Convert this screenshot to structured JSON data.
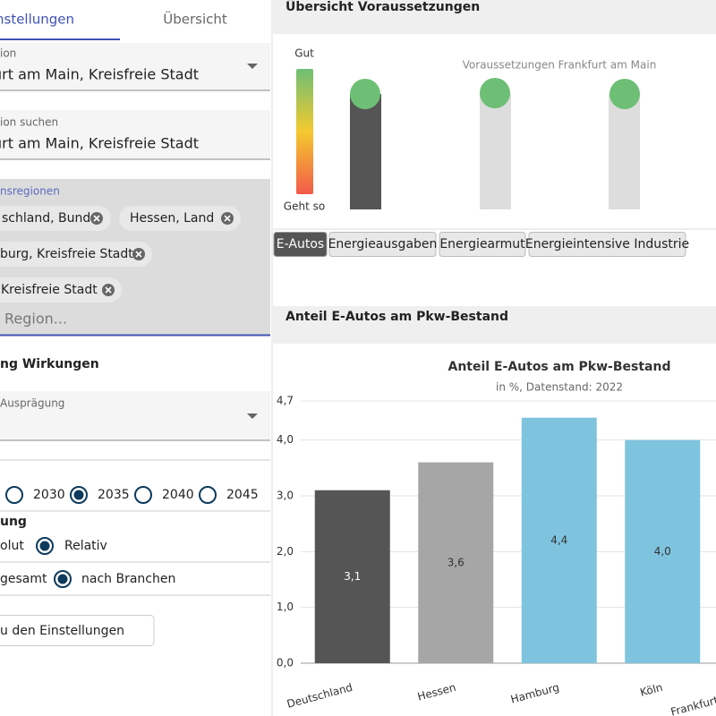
{
  "tabs": [
    "nstellungen",
    "Übersicht"
  ],
  "region": {
    "label": "ion",
    "value": "urt am Main, Kreisfreie Stadt"
  },
  "search": {
    "label": "ion suchen",
    "value": "urt am Main, Kreisfreie Stadt"
  },
  "comparison": {
    "label": "nsregionen",
    "chips": [
      "schland, Bund",
      "Hessen, Land",
      "burg, Kreisfreie Stadt",
      "Kreisfreie Stadt"
    ],
    "placeholder": "Region..."
  },
  "effects": {
    "heading": "ng Wirkungen",
    "select_label": "Ausprägung",
    "years": [
      "2030",
      "2035",
      "2040",
      "2045"
    ]
  },
  "display": {
    "heading": "ung",
    "options_a": [
      "olut",
      "Relativ"
    ],
    "options_b": [
      "gesamt",
      "nach Branchen"
    ]
  },
  "button": "u den Einstellungen",
  "overview": {
    "title": "Übersicht Voraussetzungen",
    "scale_top": "Gut",
    "scale_bottom": "Geht so",
    "caption": "Voraussetzungen Frankfurt am Main",
    "buttons": [
      "E-Autos",
      "Energieausgaben",
      "Energiearmut",
      "Energieintensive Industrie"
    ]
  },
  "section_title": "Anteil E-Autos am Pkw-Bestand",
  "chart_data": {
    "type": "bar",
    "title": "Anteil E-Autos am Pkw-Bestand",
    "subtitle": "in %, Datenstand: 2022",
    "categories": [
      "Deutschland",
      "Hessen",
      "Hamburg",
      "Köln",
      "Frankfurt am Main"
    ],
    "values": [
      3.1,
      3.6,
      4.4,
      4.0,
      null
    ],
    "value_labels": [
      "3,1",
      "3,6",
      "4,4",
      "4,0",
      null
    ],
    "colors": [
      "#555555",
      "#a6a6a6",
      "#7fc4df",
      "#7fc4df",
      null
    ],
    "ylim": [
      0,
      4.7
    ],
    "yticks": [
      {
        "value": 0,
        "label": "0,0"
      },
      {
        "value": 1,
        "label": "1,0"
      },
      {
        "value": 2,
        "label": "2,0"
      },
      {
        "value": 3,
        "label": "3,0"
      },
      {
        "value": 4,
        "label": "4,0"
      },
      {
        "value": 4.7,
        "label": "4,7"
      }
    ],
    "grid": true
  }
}
